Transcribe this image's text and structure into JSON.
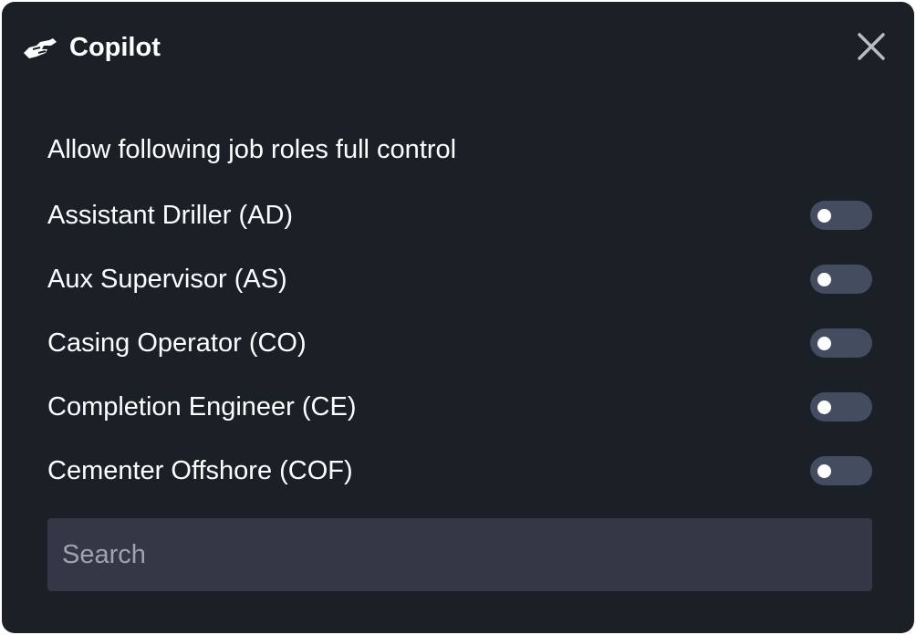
{
  "header": {
    "title": "Copilot",
    "logo_icon": "handshake-icon",
    "close_icon": "close-icon"
  },
  "section": {
    "heading": "Allow following job roles full control"
  },
  "roles": [
    {
      "label": "Assistant Driller (AD)",
      "enabled": false
    },
    {
      "label": "Aux Supervisor (AS)",
      "enabled": false
    },
    {
      "label": "Casing Operator (CO)",
      "enabled": false
    },
    {
      "label": "Completion Engineer (CE)",
      "enabled": false
    },
    {
      "label": "Cementer Offshore (COF)",
      "enabled": false
    }
  ],
  "search": {
    "placeholder": "Search",
    "value": ""
  },
  "colors": {
    "background": "#1b1f26",
    "toggle_off": "#444d5f",
    "search_bg": "#343846"
  }
}
